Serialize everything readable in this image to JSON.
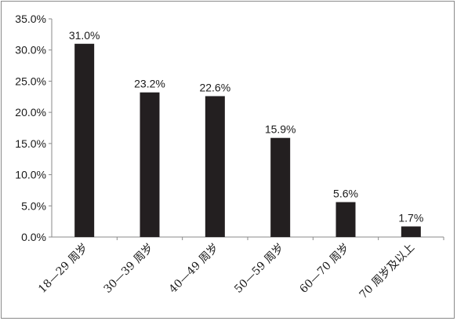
{
  "chart_data": {
    "type": "bar",
    "categories": [
      "18—29 周岁",
      "30—39 周岁",
      "40—49 周岁",
      "50—59 周岁",
      "60—70 周岁",
      "70 周岁及以上"
    ],
    "values": [
      31.0,
      23.2,
      22.6,
      15.9,
      5.6,
      1.7
    ],
    "value_labels": [
      "31.0%",
      "23.2%",
      "22.6%",
      "15.9%",
      "5.6%",
      "1.7%"
    ],
    "yticks": [
      "0.0%",
      "5.0%",
      "10.0%",
      "15.0%",
      "20.0%",
      "25.0%",
      "30.0%",
      "35.0%"
    ],
    "ylim": [
      0,
      35
    ],
    "title": "",
    "xlabel": "",
    "ylabel": "",
    "grid": false,
    "bar_color": "#231f20",
    "axis_color": "#8a8a8a"
  }
}
